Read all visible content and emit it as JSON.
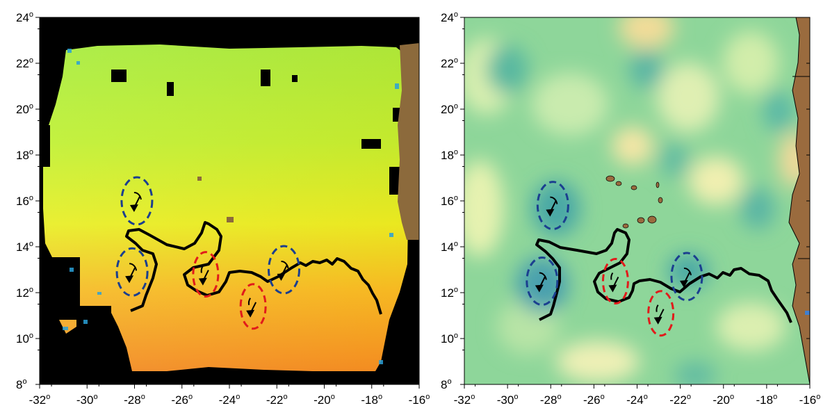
{
  "maps": [
    {
      "id": "sst-map",
      "y_ticks": [
        {
          "value": 24,
          "label": "24"
        },
        {
          "value": 22,
          "label": "22"
        },
        {
          "value": 20,
          "label": "20"
        },
        {
          "value": 18,
          "label": "18"
        },
        {
          "value": 16,
          "label": "16"
        },
        {
          "value": 14,
          "label": "14"
        },
        {
          "value": 12,
          "label": "12"
        },
        {
          "value": 10,
          "label": "10"
        },
        {
          "value": 8,
          "label": "8"
        }
      ],
      "x_ticks": [
        {
          "value": -32,
          "label": "-32"
        },
        {
          "value": -30,
          "label": "-30"
        },
        {
          "value": -28,
          "label": "-28"
        },
        {
          "value": -26,
          "label": "-26"
        },
        {
          "value": -24,
          "label": "-24"
        },
        {
          "value": -22,
          "label": "-22"
        },
        {
          "value": -20,
          "label": "-20"
        },
        {
          "value": -18,
          "label": "-18"
        },
        {
          "value": -16,
          "label": "-16"
        }
      ]
    },
    {
      "id": "ssh-map",
      "y_ticks": [
        {
          "value": 24,
          "label": "24"
        },
        {
          "value": 22,
          "label": "22"
        },
        {
          "value": 20,
          "label": "20"
        },
        {
          "value": 18,
          "label": "18"
        },
        {
          "value": 16,
          "label": "16"
        },
        {
          "value": 14,
          "label": "14"
        },
        {
          "value": 12,
          "label": "12"
        },
        {
          "value": 10,
          "label": "10"
        },
        {
          "value": 8,
          "label": "8"
        }
      ],
      "x_ticks": [
        {
          "value": -32,
          "label": "-32"
        },
        {
          "value": -30,
          "label": "-30"
        },
        {
          "value": -28,
          "label": "-28"
        },
        {
          "value": -26,
          "label": "-26"
        },
        {
          "value": -24,
          "label": "-24"
        },
        {
          "value": -22,
          "label": "-22"
        },
        {
          "value": -20,
          "label": "-20"
        },
        {
          "value": -18,
          "label": "-18"
        },
        {
          "value": -16,
          "label": "-16"
        }
      ]
    }
  ],
  "degree_symbol": "o",
  "colors": {
    "cyclonic_eddy": "#1b3f8f",
    "anticyclonic_eddy": "#e11b1b",
    "front_line": "#000000",
    "land": "#8c6a3c",
    "no_data": "#000000"
  },
  "eddies": [
    {
      "map": "sst-map",
      "type": "cyclonic",
      "lon": -27.9,
      "lat": 16.0
    },
    {
      "map": "sst-map",
      "type": "cyclonic",
      "lon": -28.1,
      "lat": 12.9
    },
    {
      "map": "sst-map",
      "type": "anticyclonic",
      "lon": -25.0,
      "lat": 12.8
    },
    {
      "map": "sst-map",
      "type": "anticyclonic",
      "lon": -23.0,
      "lat": 11.4
    },
    {
      "map": "sst-map",
      "type": "cyclonic",
      "lon": -21.7,
      "lat": 13.0
    },
    {
      "map": "ssh-map",
      "type": "cyclonic",
      "lon": -27.9,
      "lat": 15.8
    },
    {
      "map": "ssh-map",
      "type": "cyclonic",
      "lon": -28.4,
      "lat": 12.5
    },
    {
      "map": "ssh-map",
      "type": "anticyclonic",
      "lon": -25.0,
      "lat": 12.5
    },
    {
      "map": "ssh-map",
      "type": "anticyclonic",
      "lon": -22.9,
      "lat": 11.1
    },
    {
      "map": "ssh-map",
      "type": "cyclonic",
      "lon": -21.7,
      "lat": 12.7
    }
  ]
}
